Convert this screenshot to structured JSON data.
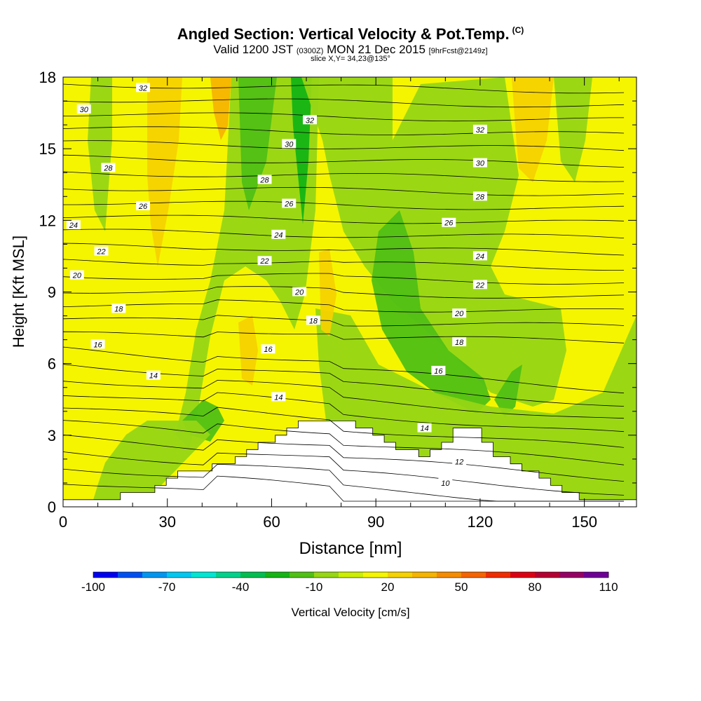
{
  "header": {
    "title": "Angled Section: Vertical Velocity & Pot.Temp.",
    "copyright": "(C)",
    "valid_main_a": "Valid 1200 JST",
    "valid_utc": "(0300Z)",
    "valid_main_b": "MON 21 Dec 2015",
    "forecast": "[9hrFcst@2149z]",
    "slice": "slice X,Y= 34,23@135°"
  },
  "chart_data": {
    "type": "heatmap",
    "xlabel": "Distance [nm]",
    "ylabel": "Height [Kft MSL]",
    "xlim": [
      0,
      165
    ],
    "ylim": [
      0,
      18
    ],
    "x_ticks": [
      "0",
      "30",
      "60",
      "90",
      "120",
      "150"
    ],
    "y_ticks": [
      "0",
      "3",
      "6",
      "9",
      "12",
      "15",
      "18"
    ],
    "contour_labels": [
      {
        "text": "32",
        "x": 23,
        "y": 17.55
      },
      {
        "text": "30",
        "x": 6,
        "y": 16.65
      },
      {
        "text": "28",
        "x": 13,
        "y": 14.2
      },
      {
        "text": "26",
        "x": 23,
        "y": 12.6
      },
      {
        "text": "24",
        "x": 3,
        "y": 11.8
      },
      {
        "text": "22",
        "x": 11,
        "y": 10.7
      },
      {
        "text": "20",
        "x": 4,
        "y": 9.7
      },
      {
        "text": "18",
        "x": 16,
        "y": 8.3
      },
      {
        "text": "16",
        "x": 10,
        "y": 6.8
      },
      {
        "text": "14",
        "x": 26,
        "y": 5.5
      },
      {
        "text": "28",
        "x": 58,
        "y": 13.7
      },
      {
        "text": "30",
        "x": 65,
        "y": 15.2
      },
      {
        "text": "26",
        "x": 65,
        "y": 12.7
      },
      {
        "text": "24",
        "x": 62,
        "y": 11.4
      },
      {
        "text": "22",
        "x": 58,
        "y": 10.3
      },
      {
        "text": "20",
        "x": 68,
        "y": 9.0
      },
      {
        "text": "18",
        "x": 72,
        "y": 7.8
      },
      {
        "text": "16",
        "x": 59,
        "y": 6.6
      },
      {
        "text": "14",
        "x": 62,
        "y": 4.6
      },
      {
        "text": "32",
        "x": 71,
        "y": 16.2
      },
      {
        "text": "32",
        "x": 120,
        "y": 15.8
      },
      {
        "text": "30",
        "x": 120,
        "y": 14.4
      },
      {
        "text": "28",
        "x": 120,
        "y": 13.0
      },
      {
        "text": "26",
        "x": 111,
        "y": 11.9
      },
      {
        "text": "24",
        "x": 120,
        "y": 10.5
      },
      {
        "text": "22",
        "x": 120,
        "y": 9.3
      },
      {
        "text": "20",
        "x": 114,
        "y": 8.1
      },
      {
        "text": "18",
        "x": 114,
        "y": 6.9
      },
      {
        "text": "16",
        "x": 108,
        "y": 5.7
      },
      {
        "text": "14",
        "x": 104,
        "y": 3.3
      },
      {
        "text": "12",
        "x": 114,
        "y": 1.9
      },
      {
        "text": "10",
        "x": 110,
        "y": 1.0
      }
    ],
    "colorbar": {
      "title": "Vertical Velocity [cm/s]",
      "tick_labels": [
        "-100",
        "-70",
        "-40",
        "-10",
        "20",
        "50",
        "80",
        "110"
      ],
      "colors": [
        "#0000f0",
        "#0050f0",
        "#0096f0",
        "#00c8f0",
        "#00e6d2",
        "#00d28c",
        "#00be50",
        "#14b414",
        "#50c014",
        "#96d614",
        "#ccee00",
        "#f5f500",
        "#f5d200",
        "#f5b400",
        "#f58c00",
        "#f56400",
        "#f02d00",
        "#dc0014",
        "#b40032",
        "#960064",
        "#6e0096"
      ]
    },
    "terrain_profile_kft": [
      0.3,
      0.3,
      0.3,
      0.3,
      0.3,
      0.3,
      0.3,
      0.3,
      0.3,
      0.3,
      0.6,
      0.6,
      0.6,
      0.6,
      0.6,
      0.6,
      0.9,
      0.9,
      1.2,
      1.2,
      1.5,
      1.5,
      1.5,
      1.5,
      1.5,
      1.5,
      1.8,
      1.8,
      1.8,
      1.8,
      2.1,
      2.1,
      2.4,
      2.4,
      2.7,
      2.7,
      2.7,
      3.0,
      3.0,
      3.3,
      3.3,
      3.6,
      3.6,
      3.6,
      3.6,
      3.6,
      3.6,
      3.6,
      3.6,
      3.6,
      3.6,
      3.3,
      3.3,
      3.3,
      3.0,
      3.0,
      2.7,
      2.7,
      2.4,
      2.4,
      2.4,
      2.4,
      2.1,
      2.1,
      2.4,
      2.4,
      2.7,
      2.7,
      3.3,
      3.3,
      3.3,
      3.3,
      3.3,
      2.7,
      2.7,
      2.1,
      2.1,
      2.1,
      1.8,
      1.8,
      1.5,
      1.5,
      1.5,
      1.2,
      1.2,
      0.9,
      0.9,
      0.6,
      0.6,
      0.6,
      0.3,
      0.3,
      0.3,
      0.3,
      0.3,
      0.3,
      0.3,
      0.3,
      0.3,
      0.3
    ]
  }
}
